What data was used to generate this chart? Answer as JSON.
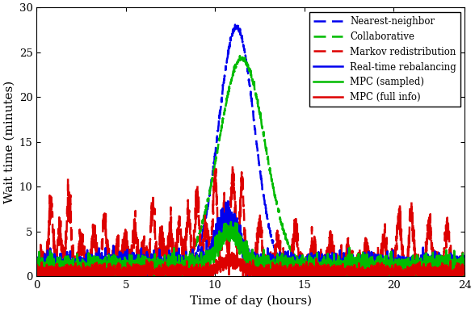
{
  "xlabel": "Time of day (hours)",
  "ylabel": "Wait time (minutes)",
  "xlim": [
    0,
    24
  ],
  "ylim": [
    0,
    30
  ],
  "xticks": [
    0,
    5,
    10,
    15,
    20,
    24
  ],
  "yticks": [
    0,
    5,
    10,
    15,
    20,
    25,
    30
  ],
  "lines": {
    "nearest_neighbor": {
      "color": "#0000EE",
      "style": "--",
      "label": "Nearest-neighbor",
      "lw": 1.8,
      "dashes": [
        6,
        3
      ]
    },
    "collaborative": {
      "color": "#00BB00",
      "style": "--",
      "label": "Collaborative",
      "lw": 1.8,
      "dashes": [
        6,
        3
      ]
    },
    "markov": {
      "color": "#DD0000",
      "style": "--",
      "label": "Markov redistribution",
      "lw": 1.8,
      "dashes": [
        6,
        3
      ]
    },
    "realtime": {
      "color": "#0000EE",
      "style": "-",
      "label": "Real-time rebalancing",
      "lw": 1.8
    },
    "mpc_sampled": {
      "color": "#00BB00",
      "style": "-",
      "label": "MPC (sampled)",
      "lw": 1.8
    },
    "mpc_full": {
      "color": "#DD0000",
      "style": "-",
      "label": "MPC (full info)",
      "lw": 1.8
    }
  },
  "legend_loc": "upper right",
  "figsize": [
    5.88,
    3.84
  ],
  "dpi": 100
}
